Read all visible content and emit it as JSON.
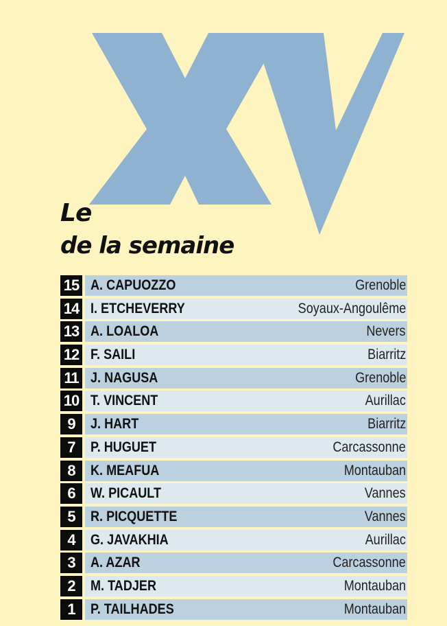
{
  "graphic": {
    "letters": "XV",
    "color": "#8fb2d1"
  },
  "title": {
    "line1": "Le",
    "line2": "de la semaine"
  },
  "colors": {
    "background": "#fdf4c0",
    "band_dark": "#bcd1e0",
    "band_light": "#dde8ef",
    "number_box": "#0b0b0b"
  },
  "players": [
    {
      "number": "15",
      "name": "A. CAPUOZZO",
      "club": "Grenoble"
    },
    {
      "number": "14",
      "name": "I. ETCHEVERRY",
      "club": "Soyaux-Angoulême"
    },
    {
      "number": "13",
      "name": "A. LOALOA",
      "club": "Nevers"
    },
    {
      "number": "12",
      "name": "F. SAILI",
      "club": "Biarritz"
    },
    {
      "number": "11",
      "name": "J. NAGUSA",
      "club": "Grenoble"
    },
    {
      "number": "10",
      "name": "T. VINCENT",
      "club": "Aurillac"
    },
    {
      "number": "9",
      "name": "J. HART",
      "club": "Biarritz"
    },
    {
      "number": "7",
      "name": "P. HUGUET",
      "club": "Carcassonne"
    },
    {
      "number": "8",
      "name": "K. MEAFUA",
      "club": "Montauban"
    },
    {
      "number": "6",
      "name": "W. PICAULT",
      "club": "Vannes"
    },
    {
      "number": "5",
      "name": "R. PICQUETTE",
      "club": "Vannes"
    },
    {
      "number": "4",
      "name": "G. JAVAKHIA",
      "club": "Aurillac"
    },
    {
      "number": "3",
      "name": "A. AZAR",
      "club": "Carcassonne"
    },
    {
      "number": "2",
      "name": "M. TADJER",
      "club": "Montauban"
    },
    {
      "number": "1",
      "name": "P. TAILHADES",
      "club": "Montauban"
    }
  ]
}
